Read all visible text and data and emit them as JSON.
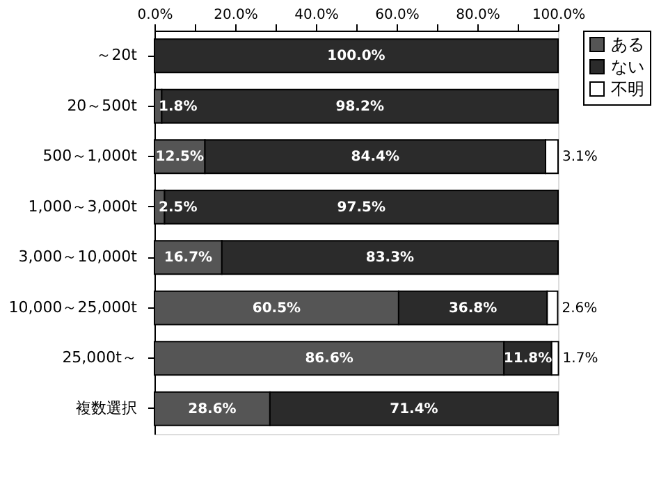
{
  "chart_data": {
    "type": "bar",
    "orientation": "horizontal",
    "stacked": true,
    "categories": [
      "～20t",
      "20～500t",
      "500～1,000t",
      "1,000～3,000t",
      "3,000～10,000t",
      "10,000～25,000t",
      "25,000t～",
      "複数選択"
    ],
    "series": [
      {
        "name": "ある",
        "color": "#555555",
        "values": [
          0,
          1.8,
          12.5,
          2.5,
          16.7,
          60.5,
          86.6,
          28.6
        ],
        "value_labels": [
          null,
          "1.8%",
          "12.5%",
          "2.5%",
          "16.7%",
          "60.5%",
          "86.6%",
          "28.6%"
        ]
      },
      {
        "name": "ない",
        "color": "#2b2b2b",
        "values": [
          100,
          98.2,
          84.4,
          97.5,
          83.3,
          36.8,
          11.8,
          71.4
        ],
        "value_labels": [
          "100.0%",
          "98.2%",
          "84.4%",
          "97.5%",
          "83.3%",
          "36.8%",
          "11.8%",
          "71.4%"
        ]
      },
      {
        "name": "不明",
        "color": "#ffffff",
        "values": [
          0,
          0,
          3.1,
          0,
          0,
          2.6,
          1.7,
          0
        ],
        "value_labels": [
          null,
          null,
          "3.1%",
          null,
          null,
          "2.6%",
          "1.7%",
          null
        ]
      }
    ],
    "xlim": [
      0,
      100
    ],
    "xticks": [
      {
        "value": 0,
        "label": "0.0%"
      },
      {
        "value": 10,
        "label": null
      },
      {
        "value": 20,
        "label": "20.0%"
      },
      {
        "value": 30,
        "label": null
      },
      {
        "value": 40,
        "label": "40.0%"
      },
      {
        "value": 50,
        "label": null
      },
      {
        "value": 60,
        "label": "60.0%"
      },
      {
        "value": 70,
        "label": null
      },
      {
        "value": 80,
        "label": "80.0%"
      },
      {
        "value": 90,
        "label": null
      },
      {
        "value": 100,
        "label": "100.0%"
      }
    ],
    "grid": false,
    "legend": "right"
  }
}
